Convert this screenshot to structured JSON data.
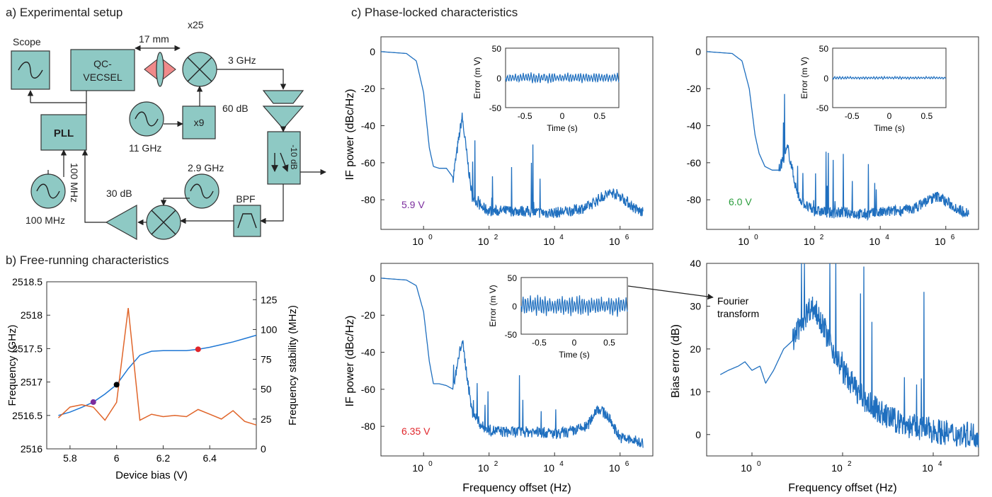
{
  "panel_a": {
    "label": "a) Experimental setup",
    "blocks": {
      "scope": "Scope",
      "qc_vecsel_line1": "QC-",
      "qc_vecsel_line2": "VECSEL",
      "pll": "PLL",
      "x9": "x9",
      "bpf": "BPF",
      "atten": "-10 dB"
    },
    "labels": {
      "distance": "17 mm",
      "x25": "x25",
      "f3ghz": "3 GHz",
      "gain60": "60 dB",
      "f11ghz": "11 GHz",
      "f29ghz": "2.9 GHz",
      "gain30": "30 dB",
      "f100mhz": "100 MHz",
      "ref100mhz": "100 MHz"
    }
  },
  "panel_b": {
    "label": "b) Free-running characteristics",
    "colors": {
      "frequency": "#1f77d4",
      "stability": "#e0652a"
    },
    "marker_colors": {
      "5.9": "#7b2d9e",
      "6.0": "#2a9d3c",
      "6.35": "#e0262b"
    },
    "chart_data": {
      "type": "line",
      "xlabel": "Device bias (V)",
      "ylabel": "Frequency (GHz)",
      "y2label": "Frequency stability (MHz)",
      "xlim": [
        5.7,
        6.6
      ],
      "ylim": [
        2516,
        2518.5
      ],
      "y2lim": [
        0,
        140
      ],
      "xticks": [
        "5.8",
        "6",
        "6.2",
        "6.4"
      ],
      "yticks": [
        "2516",
        "2516.5",
        "2517",
        "2517.5",
        "2518",
        "2518.5"
      ],
      "y2ticks": [
        "0",
        "25",
        "50",
        "75",
        "100",
        "125"
      ],
      "series": [
        {
          "x": [
            5.75,
            5.8,
            5.85,
            5.9,
            5.95,
            6.0,
            6.05,
            6.1,
            6.15,
            6.2,
            6.25,
            6.3,
            6.35,
            6.4,
            6.45,
            6.5,
            6.55,
            6.6
          ],
          "values": [
            2516.5,
            2516.55,
            2516.62,
            2516.7,
            2516.82,
            2516.96,
            2517.2,
            2517.4,
            2517.46,
            2517.47,
            2517.47,
            2517.47,
            2517.49,
            2517.52,
            2517.56,
            2517.6,
            2517.65,
            2517.7
          ]
        },
        {
          "x": [
            5.75,
            5.8,
            5.85,
            5.9,
            5.95,
            6.0,
            6.05,
            6.1,
            6.15,
            6.2,
            6.25,
            6.3,
            6.35,
            6.4,
            6.45,
            6.5,
            6.55,
            6.6
          ],
          "values": [
            26,
            35,
            37,
            35,
            24,
            39,
            118,
            24,
            29,
            27,
            28,
            27,
            33,
            29,
            25,
            32,
            23,
            20
          ]
        }
      ],
      "markers": [
        {
          "x": 5.9,
          "y": 2516.7
        },
        {
          "x": 6.0,
          "y": 2516.96
        },
        {
          "x": 6.35,
          "y": 2517.49
        }
      ]
    }
  },
  "panel_c": {
    "label": "c) Phase-locked characteristics",
    "line_color": "#1f6fbf",
    "plot1": {
      "ylabel": "IF power (dBc/Hz)",
      "annotation": "5.9 V",
      "annotation_color": "#7b2d9e",
      "inset_ylabel": "Error (m V)",
      "inset_xlabel": "Time (s)",
      "inset_yticks": [
        "50",
        "0",
        "-50"
      ],
      "inset_xticks": [
        "-0.5",
        "0",
        "0.5"
      ]
    },
    "plot2": {
      "annotation": "6.0 V",
      "annotation_color": "#2a9d3c",
      "inset_ylabel": "Error (m V)",
      "inset_xlabel": "Time (s)",
      "inset_yticks": [
        "50",
        "0",
        "-50"
      ],
      "inset_xticks": [
        "-0.5",
        "0",
        "0.5"
      ]
    },
    "plot3": {
      "ylabel": "IF power (dBc/Hz)",
      "xlabel": "Frequency offset (Hz)",
      "annotation": "6.35 V",
      "annotation_color": "#e0262b",
      "inset_ylabel": "Error (m V)",
      "inset_xlabel": "Time (s)",
      "inset_yticks": [
        "50",
        "0",
        "-50"
      ],
      "inset_xticks": [
        "-0.5",
        "0",
        "0.5"
      ]
    },
    "plot4": {
      "ylabel": "Bias error (dB)",
      "xlabel": "Frequency offset (Hz)",
      "arrow_label_line1": "Fourier",
      "arrow_label_line2": "transform"
    },
    "psd_yticks": [
      "0",
      "-20",
      "-40",
      "-60",
      "-80"
    ],
    "psd_xticks_mantissa": "10",
    "psd_xticks_exp": [
      "0",
      "2",
      "4",
      "6"
    ],
    "bias_yticks": [
      "40",
      "30",
      "20",
      "10",
      "0"
    ],
    "bias_xticks_exp": [
      "0",
      "2",
      "4"
    ]
  },
  "chart_data": [
    {
      "type": "line",
      "title": "",
      "xlabel": "",
      "ylabel": "IF power (dBc/Hz)",
      "log_x": true,
      "xlim": [
        0.05,
        10000000
      ],
      "ylim": [
        -96,
        8
      ],
      "series": [
        {
          "x": [
            0.05,
            0.3,
            0.6,
            1,
            1.5,
            2,
            3,
            5,
            8,
            15,
            30,
            60,
            100,
            300,
            1000,
            3000,
            10000,
            30000,
            100000,
            300000,
            600000,
            1000000,
            3000000,
            5000000
          ],
          "values": [
            0,
            -1,
            -5,
            -22,
            -52,
            -62,
            -63,
            -63,
            -68,
            -35,
            -78,
            -84,
            -86,
            -86,
            -86,
            -87,
            -87,
            -86,
            -84,
            -78,
            -76,
            -78,
            -85,
            -87
          ]
        }
      ]
    },
    {
      "type": "line",
      "title": "",
      "xlabel": "",
      "ylabel": "",
      "log_x": true,
      "xlim": [
        0.05,
        10000000
      ],
      "ylim": [
        -96,
        8
      ],
      "series": [
        {
          "x": [
            0.05,
            0.3,
            0.6,
            1,
            1.5,
            2,
            3,
            5,
            8,
            15,
            30,
            60,
            100,
            300,
            1000,
            3000,
            10000,
            30000,
            100000,
            300000,
            600000,
            1000000,
            3000000,
            5000000
          ],
          "values": [
            0,
            -1,
            -5,
            -20,
            -45,
            -55,
            -62,
            -64,
            -64,
            -52,
            -78,
            -84,
            -86,
            -87,
            -87,
            -88,
            -87,
            -86,
            -85,
            -80,
            -78,
            -81,
            -86,
            -87
          ]
        }
      ]
    },
    {
      "type": "line",
      "title": "",
      "xlabel": "Frequency offset (Hz)",
      "ylabel": "IF power (dBc/Hz)",
      "log_x": true,
      "xlim": [
        0.05,
        10000000
      ],
      "ylim": [
        -96,
        8
      ],
      "series": [
        {
          "x": [
            0.05,
            0.3,
            0.6,
            1,
            1.5,
            2,
            3,
            5,
            8,
            15,
            30,
            60,
            100,
            300,
            1000,
            3000,
            10000,
            30000,
            100000,
            200000,
            400000,
            1000000,
            3000000,
            5000000
          ],
          "values": [
            0,
            -1,
            -4,
            -18,
            -45,
            -57,
            -57,
            -58,
            -60,
            -33,
            -72,
            -80,
            -82,
            -83,
            -83,
            -83,
            -84,
            -83,
            -80,
            -70,
            -74,
            -86,
            -88,
            -89
          ]
        }
      ]
    },
    {
      "type": "line",
      "title": "",
      "xlabel": "Frequency offset (Hz)",
      "ylabel": "Bias error (dB)",
      "log_x": true,
      "xlim": [
        0.1,
        100000
      ],
      "ylim": [
        -5,
        40
      ],
      "series": [
        {
          "x": [
            0.2,
            0.3,
            0.5,
            0.7,
            1,
            1.5,
            2,
            3,
            5,
            8,
            12,
            20,
            30,
            50,
            100,
            300,
            1000,
            3000,
            10000,
            30000,
            100000
          ],
          "values": [
            14,
            15,
            16,
            17,
            15,
            16,
            12,
            15,
            20,
            22,
            26,
            30,
            28,
            22,
            15,
            8,
            4,
            2,
            1,
            0,
            0
          ]
        }
      ]
    }
  ]
}
